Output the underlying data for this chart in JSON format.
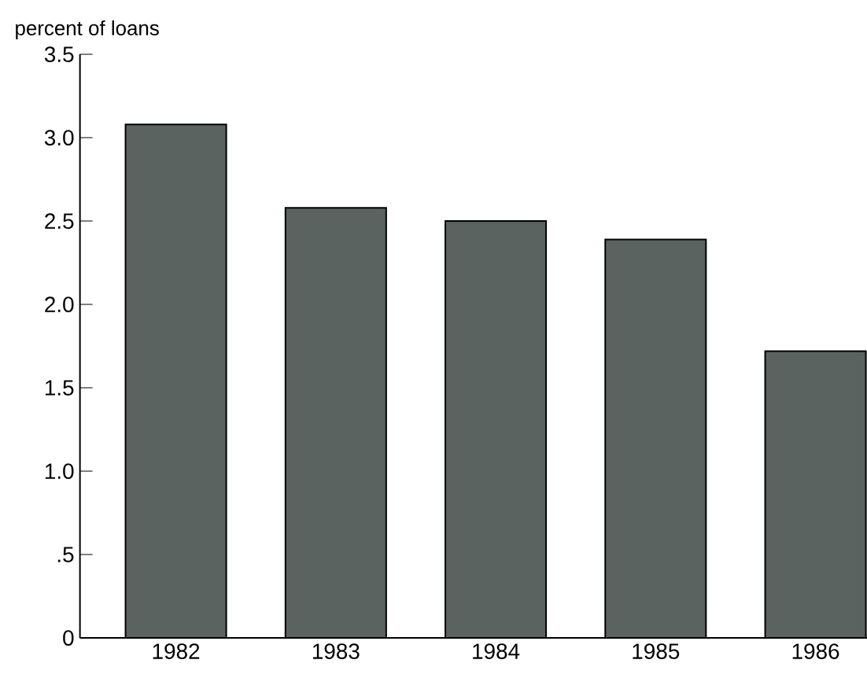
{
  "chart_data": {
    "type": "bar",
    "ylabel": "percent of loans",
    "categories": [
      "1982",
      "1983",
      "1984",
      "1985",
      "1986"
    ],
    "values": [
      3.08,
      2.58,
      2.5,
      2.39,
      1.72
    ],
    "color": "#5b6361",
    "ylim": [
      0,
      3.5
    ],
    "yticks": [
      0,
      {
        "value": 0.5,
        "label": ".5"
      },
      {
        "value": 1,
        "label": "1.0"
      },
      {
        "value": 1.5,
        "label": "1.5"
      },
      {
        "value": 2,
        "label": "2.0"
      },
      {
        "value": 2.5,
        "label": "2.5"
      },
      {
        "value": 3,
        "label": "3.0"
      },
      {
        "value": 3.5,
        "label": "3.5"
      }
    ]
  }
}
